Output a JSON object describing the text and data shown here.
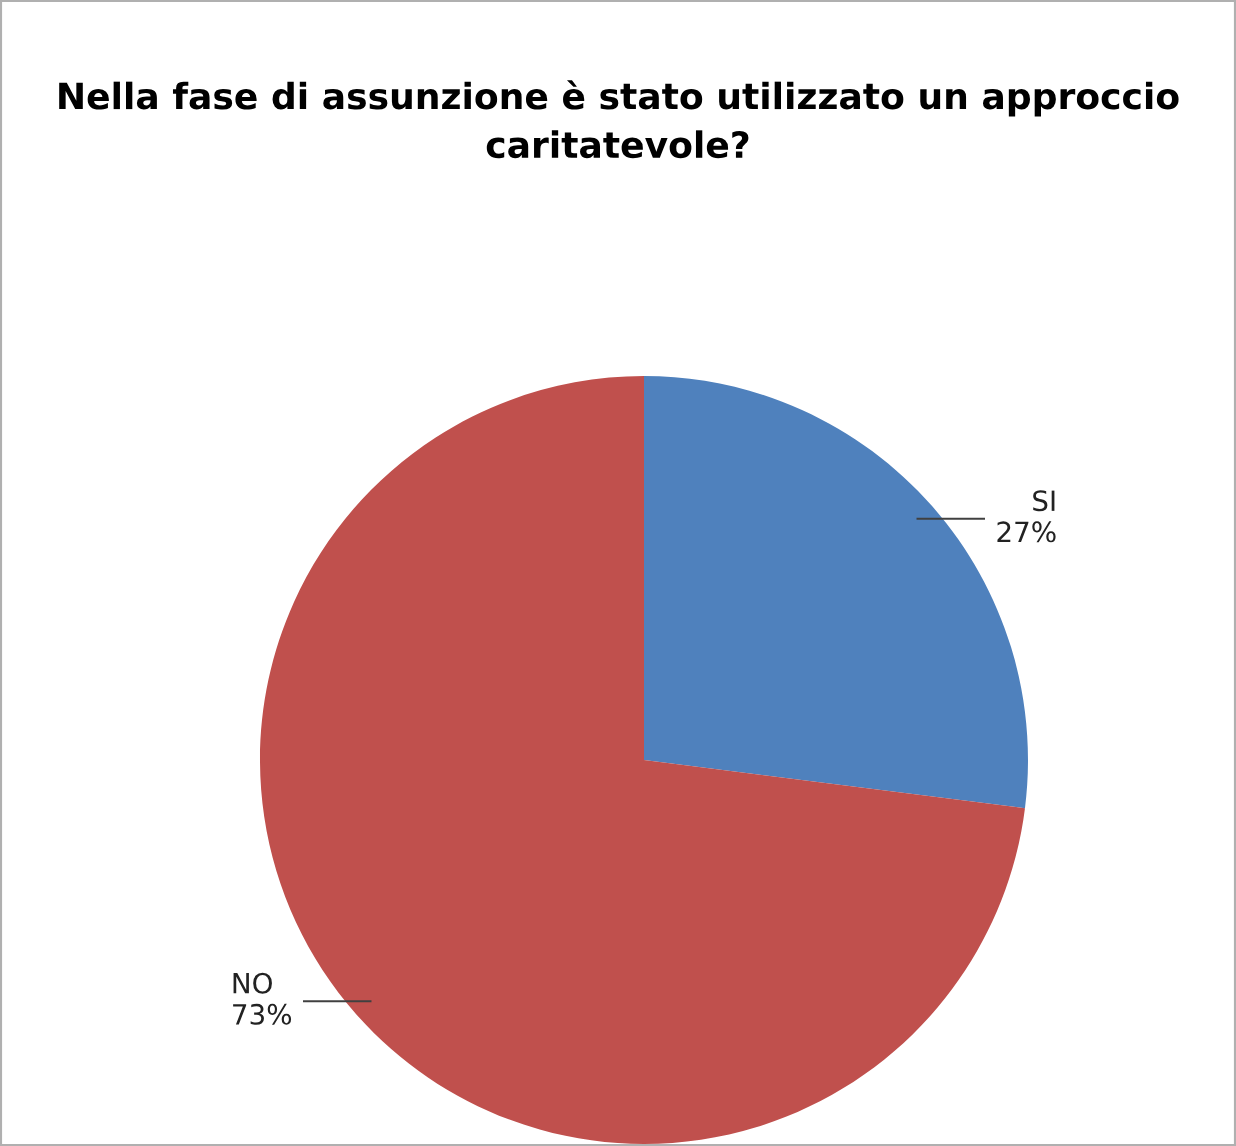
{
  "chart_data": {
    "type": "pie",
    "title": "Nella fase di assunzione è stato utilizzato un approccio caritatevole?",
    "categories": [
      "SI",
      "NO"
    ],
    "values": [
      27,
      73
    ],
    "colors": [
      "#4f81bd",
      "#c0504d"
    ],
    "value_labels": [
      "27%",
      "73%"
    ],
    "legend": false
  }
}
